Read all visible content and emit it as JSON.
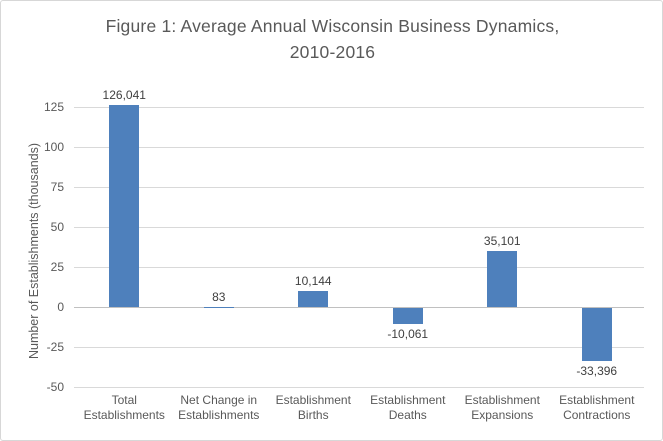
{
  "figure": {
    "title_line1": "Figure 1: Average Annual Wisconsin Business Dynamics,",
    "title_line2": "2010-2016"
  },
  "chart_data": {
    "type": "bar",
    "title": "Figure 1: Average Annual Wisconsin Business Dynamics, 2010-2016",
    "xlabel": "",
    "ylabel": "Number of Establishments (thousands)",
    "categories": [
      "Total Establishments",
      "Net Change in Establishments",
      "Establishment Births",
      "Establishment Deaths",
      "Establishment Expansions",
      "Establishment Contractions"
    ],
    "values": [
      126041,
      83,
      10144,
      -10061,
      35101,
      -33396
    ],
    "value_labels": [
      "126,041",
      "83",
      "10,144",
      "-10,061",
      "35,101",
      "-33,396"
    ],
    "value_scale_divisor": 1000,
    "ylim": [
      -50,
      125
    ],
    "yticks": [
      125,
      100,
      75,
      50,
      25,
      0,
      -25,
      -50
    ],
    "grid": true,
    "legend": false,
    "colors": {
      "bar": "#4e80bc",
      "gridline": "#d9d9d9",
      "zero_axis": "#c0c0c0",
      "axis_text": "#595959",
      "data_label_text": "#404040",
      "title_text": "#595959"
    }
  }
}
